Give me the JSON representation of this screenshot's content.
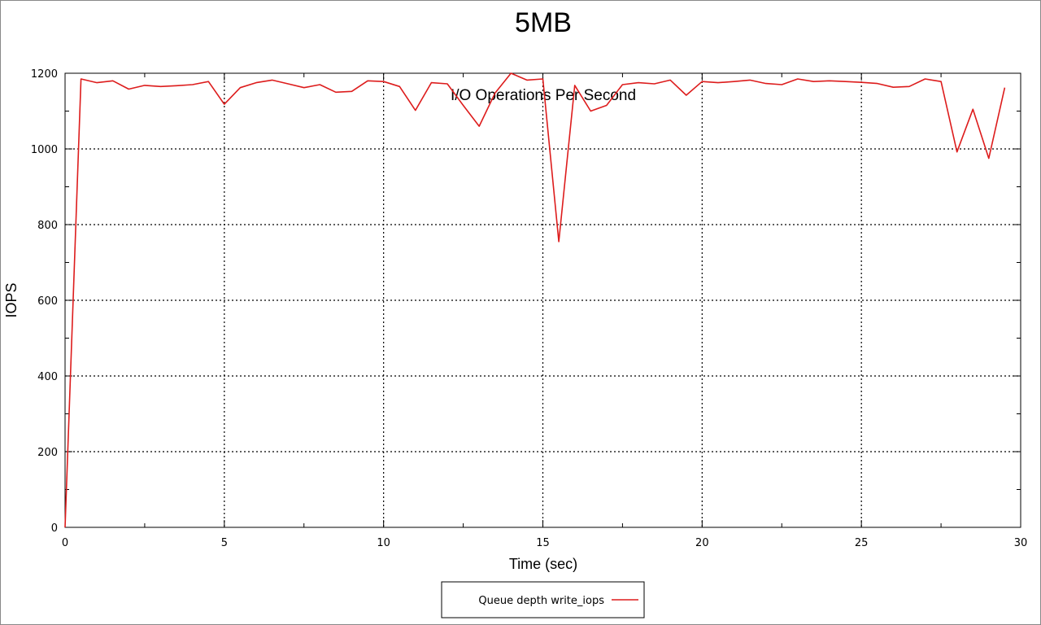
{
  "chart_data": {
    "type": "line",
    "title": "5MB",
    "subtitle": "I/O Operations Per Second",
    "xlabel": "Time (sec)",
    "ylabel": "IOPS",
    "xlim": [
      0,
      30
    ],
    "ylim": [
      0,
      1200
    ],
    "x_ticks": [
      0,
      5,
      10,
      15,
      20,
      25,
      30
    ],
    "y_ticks": [
      0,
      200,
      400,
      600,
      800,
      1000,
      1200
    ],
    "grid": true,
    "legend_position": "bottom-center",
    "series": [
      {
        "name": "Queue depth write_iops",
        "color": "#dd1c1c",
        "x": [
          0,
          0.5,
          1,
          1.5,
          2,
          2.5,
          3,
          3.5,
          4,
          4.5,
          5,
          5.5,
          6,
          6.5,
          7,
          7.5,
          8,
          8.5,
          9,
          9.5,
          10,
          10.5,
          11,
          11.5,
          12,
          12.5,
          13,
          13.5,
          14,
          14.5,
          15,
          15.5,
          16,
          16.5,
          17,
          17.5,
          18,
          18.5,
          19,
          19.5,
          20,
          20.5,
          21,
          21.5,
          22,
          22.5,
          23,
          23.5,
          24,
          24.5,
          25,
          25.5,
          26,
          26.5,
          27,
          27.5,
          28,
          28.5,
          29,
          29.5
        ],
        "y": [
          0,
          1185,
          1175,
          1180,
          1158,
          1168,
          1165,
          1167,
          1170,
          1178,
          1118,
          1162,
          1175,
          1182,
          1172,
          1162,
          1170,
          1150,
          1152,
          1180,
          1178,
          1165,
          1102,
          1175,
          1172,
          1115,
          1060,
          1148,
          1200,
          1182,
          1185,
          755,
          1168,
          1100,
          1115,
          1170,
          1175,
          1172,
          1182,
          1142,
          1178,
          1175,
          1178,
          1182,
          1173,
          1170,
          1185,
          1178,
          1180,
          1178,
          1176,
          1173,
          1163,
          1165,
          1185,
          1178,
          992,
          1105,
          975,
          1162
        ]
      }
    ]
  },
  "legend": {
    "label": "Queue depth write_iops"
  }
}
